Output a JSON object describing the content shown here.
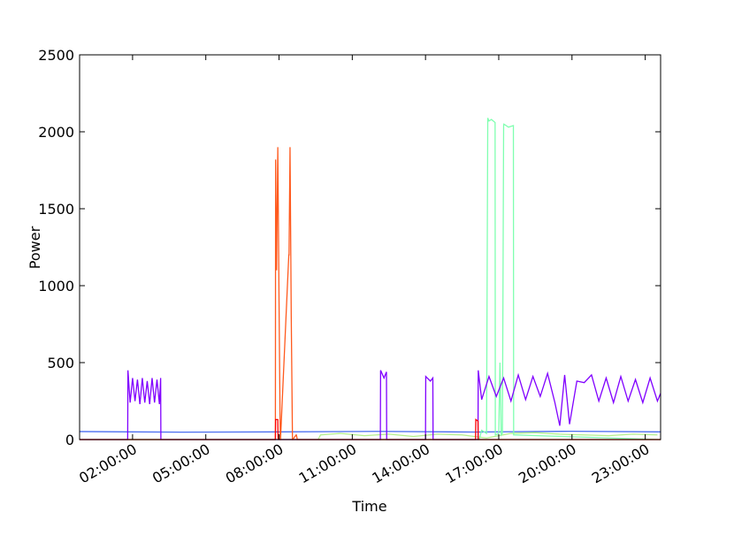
{
  "chart_data": {
    "type": "line",
    "xlabel": "Time",
    "ylabel": "Power",
    "xlim": [
      -0.17,
      23.63
    ],
    "ylim": [
      0,
      2500
    ],
    "yticks": [
      0,
      500,
      1000,
      1500,
      2000,
      2500
    ],
    "xticks": [
      {
        "value": 2,
        "label": "02:00:00"
      },
      {
        "value": 5,
        "label": "05:00:00"
      },
      {
        "value": 8,
        "label": "08:00:00"
      },
      {
        "value": 11,
        "label": "11:00:00"
      },
      {
        "value": 14,
        "label": "14:00:00"
      },
      {
        "value": 17,
        "label": "17:00:00"
      },
      {
        "value": 20,
        "label": "20:00:00"
      },
      {
        "value": 23,
        "label": "23:00:00"
      }
    ],
    "series": [
      {
        "color": "#4a6cf0",
        "x": [
          -0.17,
          4,
          8,
          12,
          16,
          20,
          23.63
        ],
        "values": [
          52,
          48,
          50,
          53,
          49,
          54,
          50
        ]
      },
      {
        "color": "#b4f08c",
        "x": [
          9.6,
          9.7,
          10.5,
          11.5,
          12.5,
          13.5,
          14.5,
          15.5,
          16.5,
          17.5,
          18.5,
          19.5,
          20.5,
          21.5,
          22.5,
          23.5
        ],
        "values": [
          0,
          30,
          40,
          25,
          35,
          20,
          35,
          30,
          10,
          40,
          45,
          35,
          30,
          25,
          35,
          30
        ]
      },
      {
        "color": "#80ffb0",
        "x": [
          -0.17,
          16.2,
          16.3,
          16.5,
          16.55,
          16.6,
          16.7,
          16.85,
          16.86,
          17.0,
          17.05,
          17.1,
          17.15,
          17.2,
          17.21,
          17.4,
          17.6,
          17.61,
          23.63
        ],
        "values": [
          0,
          0,
          60,
          40,
          2090,
          2070,
          2080,
          2060,
          30,
          40,
          500,
          30,
          40,
          2040,
          2050,
          2030,
          2040,
          30,
          0
        ]
      },
      {
        "color": "#8000ff",
        "x": [
          -0.17,
          1.8,
          1.81,
          1.9,
          2.0,
          2.1,
          2.2,
          2.3,
          2.4,
          2.5,
          2.6,
          2.7,
          2.8,
          2.9,
          3.0,
          3.1,
          3.15,
          3.16,
          12.15,
          12.16,
          12.3,
          12.4,
          12.41,
          14.0,
          14.01,
          14.2,
          14.3,
          14.31,
          16.15,
          16.16,
          16.3,
          16.6,
          16.9,
          17.2,
          17.5,
          17.8,
          18.1,
          18.4,
          18.7,
          19.0,
          19.3,
          19.5,
          19.7,
          19.9,
          20.2,
          20.5,
          20.8,
          21.1,
          21.4,
          21.7,
          22.0,
          22.3,
          22.6,
          22.9,
          23.2,
          23.5,
          23.63
        ],
        "values": [
          0,
          0,
          450,
          240,
          400,
          250,
          390,
          230,
          400,
          240,
          380,
          230,
          400,
          240,
          390,
          230,
          400,
          0,
          0,
          450,
          400,
          440,
          0,
          0,
          410,
          380,
          400,
          0,
          0,
          450,
          260,
          410,
          280,
          400,
          250,
          420,
          260,
          410,
          280,
          430,
          240,
          90,
          420,
          100,
          380,
          370,
          420,
          250,
          400,
          240,
          410,
          250,
          390,
          240,
          400,
          250,
          300
        ]
      },
      {
        "color": "#ff5a1e",
        "x": [
          -0.17,
          7.85,
          7.86,
          7.9,
          7.95,
          8.0,
          8.05,
          8.06,
          8.4,
          8.41,
          8.45,
          8.5,
          8.55,
          8.56,
          8.7,
          8.71,
          8.75,
          23.63
        ],
        "values": [
          0,
          0,
          1820,
          1100,
          1900,
          900,
          0,
          0,
          1200,
          1200,
          1900,
          800,
          0,
          0,
          30,
          30,
          0,
          0
        ]
      },
      {
        "color": "#ff0000",
        "x": [
          -0.17,
          7.85,
          7.86,
          7.95,
          7.96,
          16.05,
          16.06,
          16.15,
          16.16,
          23.63
        ],
        "values": [
          0,
          0,
          130,
          130,
          0,
          0,
          130,
          120,
          0,
          0
        ]
      }
    ]
  }
}
